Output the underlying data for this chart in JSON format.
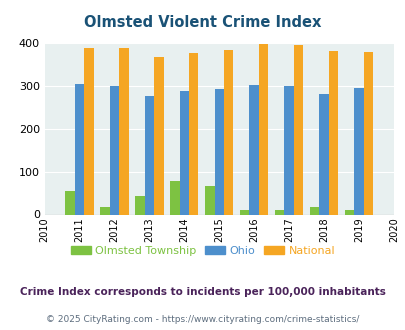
{
  "title": "Olmsted Violent Crime Index",
  "years": [
    2010,
    2011,
    2012,
    2013,
    2014,
    2015,
    2016,
    2017,
    2018,
    2019,
    2020
  ],
  "data_years": [
    2011,
    2012,
    2013,
    2014,
    2015,
    2016,
    2017,
    2018,
    2019
  ],
  "olmsted": [
    55,
    18,
    42,
    77,
    67,
    10,
    10,
    18,
    10
  ],
  "ohio": [
    305,
    299,
    276,
    287,
    292,
    301,
    299,
    281,
    294
  ],
  "national": [
    387,
    387,
    368,
    377,
    384,
    397,
    394,
    381,
    379
  ],
  "olmsted_color": "#7dc242",
  "ohio_color": "#4d8fcc",
  "national_color": "#f5a623",
  "bg_color": "#e8f0f0",
  "ylim": [
    0,
    400
  ],
  "yticks": [
    0,
    100,
    200,
    300,
    400
  ],
  "bar_width": 0.27,
  "legend_labels": [
    "Olmsted Township",
    "Ohio",
    "National"
  ],
  "footnote1": "Crime Index corresponds to incidents per 100,000 inhabitants",
  "footnote2": "© 2025 CityRating.com - https://www.cityrating.com/crime-statistics/",
  "title_color": "#1a5276",
  "footnote1_color": "#4a235a",
  "footnote2_color": "#5d6d7e"
}
